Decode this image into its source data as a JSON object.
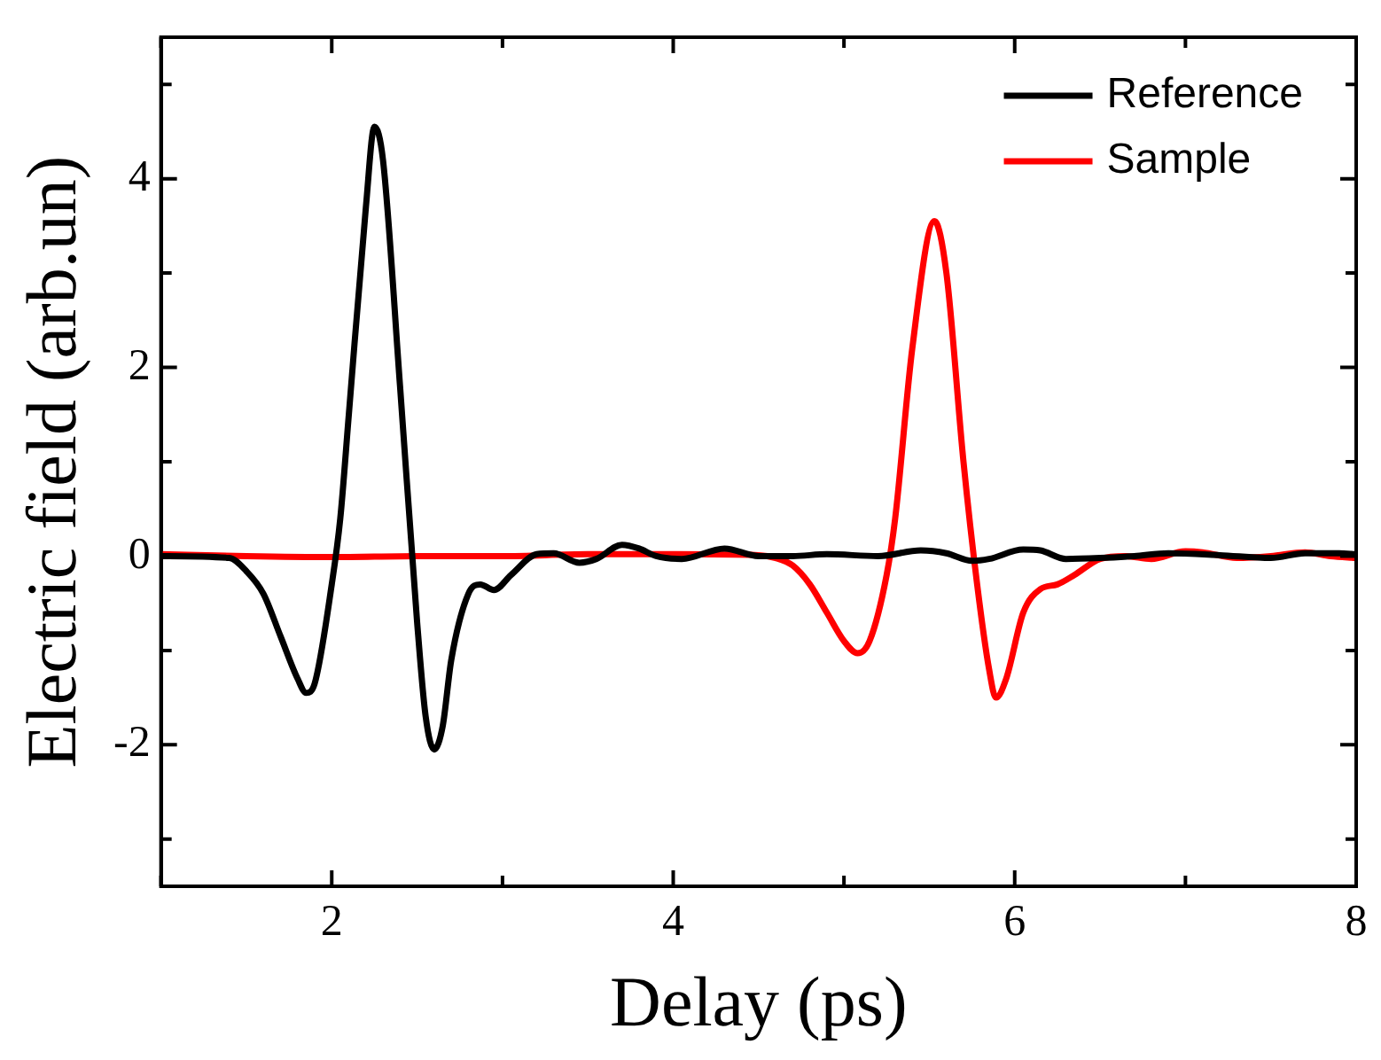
{
  "chart_data": {
    "type": "line",
    "xlabel": "Delay (ps)",
    "ylabel": "Electric field (arb.un)",
    "xlim": [
      1,
      8
    ],
    "xticks": [
      {
        "value": 1,
        "label": null
      },
      2,
      {
        "value": 3,
        "label": null
      },
      4,
      {
        "value": 5,
        "label": null
      },
      6,
      {
        "value": 7,
        "label": null
      },
      8
    ],
    "ylim": [
      -3.5,
      5.5
    ],
    "yticks": [
      {
        "value": -3,
        "label": null
      },
      -2,
      {
        "value": -1,
        "label": null
      },
      0,
      {
        "value": 1,
        "label": null
      },
      2,
      {
        "value": 3,
        "label": null
      },
      4,
      {
        "value": 5,
        "label": null
      }
    ],
    "grid": false,
    "legend": "top right",
    "marker": "none",
    "line_style": "solid",
    "series": [
      {
        "name": "Reference",
        "color": "#000000",
        "x": [
          1.0,
          1.4,
          1.5,
          1.6,
          1.7,
          1.8,
          1.85,
          1.9,
          2.0,
          2.05,
          2.1,
          2.2,
          2.25,
          2.3,
          2.4,
          2.5,
          2.55,
          2.6,
          2.65,
          2.7,
          2.8,
          2.87,
          2.95,
          3.05,
          3.2,
          3.3,
          3.45,
          3.55,
          3.7,
          3.8,
          3.9,
          4.05,
          4.3,
          4.5,
          4.7,
          4.9,
          5.2,
          5.45,
          5.6,
          5.75,
          5.85,
          6.05,
          6.15,
          6.3,
          6.5,
          6.7,
          6.9,
          7.2,
          7.5,
          7.7,
          7.9,
          8.0
        ],
        "values": [
          0,
          -0.02,
          -0.16,
          -0.4,
          -0.85,
          -1.3,
          -1.45,
          -1.35,
          -0.3,
          0.4,
          1.5,
          3.7,
          4.55,
          4.2,
          1.8,
          -0.7,
          -1.7,
          -2.05,
          -1.8,
          -1.1,
          -0.4,
          -0.3,
          -0.36,
          -0.2,
          0.02,
          0.03,
          -0.07,
          -0.03,
          0.12,
          0.08,
          0,
          -0.03,
          0.08,
          0,
          0,
          0.02,
          0,
          0.06,
          0.03,
          -0.05,
          -0.03,
          0.07,
          0.06,
          -0.03,
          -0.02,
          0,
          0.03,
          0.01,
          -0.02,
          0.03,
          0.03,
          0.02
        ]
      },
      {
        "name": "Sample",
        "color": "#ff0000",
        "x": [
          1.0,
          1.5,
          2.0,
          2.5,
          3.0,
          3.5,
          4.0,
          4.5,
          4.6,
          4.7,
          4.8,
          4.9,
          5.0,
          5.08,
          5.15,
          5.25,
          5.3,
          5.4,
          5.53,
          5.6,
          5.7,
          5.78,
          5.85,
          5.89,
          5.95,
          6.05,
          6.15,
          6.25,
          6.35,
          6.5,
          6.65,
          6.8,
          7.0,
          7.1,
          7.3,
          7.5,
          7.7,
          7.85,
          8.0
        ],
        "values": [
          0.02,
          0,
          -0.01,
          0,
          0,
          0.02,
          0.02,
          0.01,
          -0.02,
          -0.1,
          -0.3,
          -0.6,
          -0.9,
          -1.03,
          -0.9,
          -0.2,
          0.4,
          2.2,
          3.55,
          3.0,
          1.0,
          -0.3,
          -1.2,
          -1.5,
          -1.3,
          -0.6,
          -0.35,
          -0.3,
          -0.2,
          -0.03,
          0,
          -0.03,
          0.05,
          0.04,
          -0.02,
          0,
          0.04,
          0,
          -0.02
        ]
      }
    ]
  }
}
